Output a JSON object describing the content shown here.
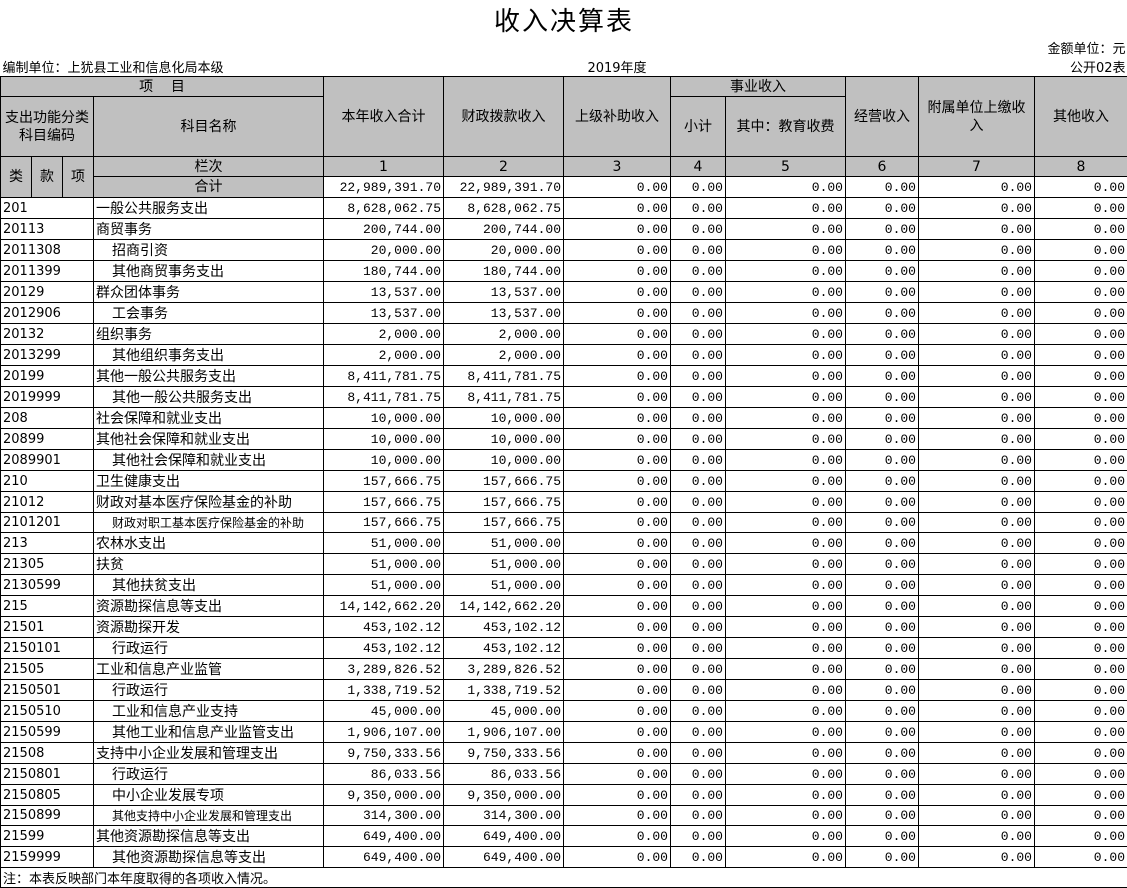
{
  "title": "收入决算表",
  "unit_note": "金额单位：元",
  "org": "编制单位：上犹县工业和信息化局本级",
  "year": "2019年度",
  "form_no": "公开02表",
  "header": {
    "item": "项    目",
    "code_col": "支出功能分类科目编码",
    "name_col": "科目名称",
    "total_income": "本年收入合计",
    "fiscal": "财政拨款收入",
    "superior": "上级补助收入",
    "shiye": "事业收入",
    "subtotal": "小计",
    "edu": "其中：教育收费",
    "business": "经营收入",
    "affiliated": "附属单位上缴收入",
    "other": "其他收入",
    "lanci": "栏次",
    "lei": "类",
    "kuan": "款",
    "xiang": "项",
    "col_numbers": [
      "1",
      "2",
      "3",
      "4",
      "5",
      "6",
      "7",
      "8"
    ]
  },
  "total": {
    "label": "合计",
    "values": [
      "22,989,391.70",
      "22,989,391.70",
      "0.00",
      "0.00",
      "0.00",
      "0.00",
      "0.00",
      "0.00"
    ]
  },
  "rows": [
    [
      "201",
      "一般公共服务支出",
      "8,628,062.75",
      "8,628,062.75",
      "0.00",
      "0.00",
      "0.00",
      "0.00",
      "0.00",
      "0.00"
    ],
    [
      "20113",
      "商贸事务",
      "200,744.00",
      "200,744.00",
      "0.00",
      "0.00",
      "0.00",
      "0.00",
      "0.00",
      "0.00"
    ],
    [
      "2011308",
      "招商引资",
      "20,000.00",
      "20,000.00",
      "0.00",
      "0.00",
      "0.00",
      "0.00",
      "0.00",
      "0.00"
    ],
    [
      "2011399",
      "其他商贸事务支出",
      "180,744.00",
      "180,744.00",
      "0.00",
      "0.00",
      "0.00",
      "0.00",
      "0.00",
      "0.00"
    ],
    [
      "20129",
      "群众团体事务",
      "13,537.00",
      "13,537.00",
      "0.00",
      "0.00",
      "0.00",
      "0.00",
      "0.00",
      "0.00"
    ],
    [
      "2012906",
      "工会事务",
      "13,537.00",
      "13,537.00",
      "0.00",
      "0.00",
      "0.00",
      "0.00",
      "0.00",
      "0.00"
    ],
    [
      "20132",
      "组织事务",
      "2,000.00",
      "2,000.00",
      "0.00",
      "0.00",
      "0.00",
      "0.00",
      "0.00",
      "0.00"
    ],
    [
      "2013299",
      "其他组织事务支出",
      "2,000.00",
      "2,000.00",
      "0.00",
      "0.00",
      "0.00",
      "0.00",
      "0.00",
      "0.00"
    ],
    [
      "20199",
      "其他一般公共服务支出",
      "8,411,781.75",
      "8,411,781.75",
      "0.00",
      "0.00",
      "0.00",
      "0.00",
      "0.00",
      "0.00"
    ],
    [
      "2019999",
      "其他一般公共服务支出",
      "8,411,781.75",
      "8,411,781.75",
      "0.00",
      "0.00",
      "0.00",
      "0.00",
      "0.00",
      "0.00"
    ],
    [
      "208",
      "社会保障和就业支出",
      "10,000.00",
      "10,000.00",
      "0.00",
      "0.00",
      "0.00",
      "0.00",
      "0.00",
      "0.00"
    ],
    [
      "20899",
      "其他社会保障和就业支出",
      "10,000.00",
      "10,000.00",
      "0.00",
      "0.00",
      "0.00",
      "0.00",
      "0.00",
      "0.00"
    ],
    [
      "2089901",
      "其他社会保障和就业支出",
      "10,000.00",
      "10,000.00",
      "0.00",
      "0.00",
      "0.00",
      "0.00",
      "0.00",
      "0.00"
    ],
    [
      "210",
      "卫生健康支出",
      "157,666.75",
      "157,666.75",
      "0.00",
      "0.00",
      "0.00",
      "0.00",
      "0.00",
      "0.00"
    ],
    [
      "21012",
      "财政对基本医疗保险基金的补助",
      "157,666.75",
      "157,666.75",
      "0.00",
      "0.00",
      "0.00",
      "0.00",
      "0.00",
      "0.00"
    ],
    [
      "2101201",
      "财政对职工基本医疗保险基金的补助",
      "157,666.75",
      "157,666.75",
      "0.00",
      "0.00",
      "0.00",
      "0.00",
      "0.00",
      "0.00"
    ],
    [
      "213",
      "农林水支出",
      "51,000.00",
      "51,000.00",
      "0.00",
      "0.00",
      "0.00",
      "0.00",
      "0.00",
      "0.00"
    ],
    [
      "21305",
      "扶贫",
      "51,000.00",
      "51,000.00",
      "0.00",
      "0.00",
      "0.00",
      "0.00",
      "0.00",
      "0.00"
    ],
    [
      "2130599",
      "其他扶贫支出",
      "51,000.00",
      "51,000.00",
      "0.00",
      "0.00",
      "0.00",
      "0.00",
      "0.00",
      "0.00"
    ],
    [
      "215",
      "资源勘探信息等支出",
      "14,142,662.20",
      "14,142,662.20",
      "0.00",
      "0.00",
      "0.00",
      "0.00",
      "0.00",
      "0.00"
    ],
    [
      "21501",
      "资源勘探开发",
      "453,102.12",
      "453,102.12",
      "0.00",
      "0.00",
      "0.00",
      "0.00",
      "0.00",
      "0.00"
    ],
    [
      "2150101",
      "行政运行",
      "453,102.12",
      "453,102.12",
      "0.00",
      "0.00",
      "0.00",
      "0.00",
      "0.00",
      "0.00"
    ],
    [
      "21505",
      "工业和信息产业监管",
      "3,289,826.52",
      "3,289,826.52",
      "0.00",
      "0.00",
      "0.00",
      "0.00",
      "0.00",
      "0.00"
    ],
    [
      "2150501",
      "行政运行",
      "1,338,719.52",
      "1,338,719.52",
      "0.00",
      "0.00",
      "0.00",
      "0.00",
      "0.00",
      "0.00"
    ],
    [
      "2150510",
      "工业和信息产业支持",
      "45,000.00",
      "45,000.00",
      "0.00",
      "0.00",
      "0.00",
      "0.00",
      "0.00",
      "0.00"
    ],
    [
      "2150599",
      "其他工业和信息产业监管支出",
      "1,906,107.00",
      "1,906,107.00",
      "0.00",
      "0.00",
      "0.00",
      "0.00",
      "0.00",
      "0.00"
    ],
    [
      "21508",
      "支持中小企业发展和管理支出",
      "9,750,333.56",
      "9,750,333.56",
      "0.00",
      "0.00",
      "0.00",
      "0.00",
      "0.00",
      "0.00"
    ],
    [
      "2150801",
      "行政运行",
      "86,033.56",
      "86,033.56",
      "0.00",
      "0.00",
      "0.00",
      "0.00",
      "0.00",
      "0.00"
    ],
    [
      "2150805",
      "中小企业发展专项",
      "9,350,000.00",
      "9,350,000.00",
      "0.00",
      "0.00",
      "0.00",
      "0.00",
      "0.00",
      "0.00"
    ],
    [
      "2150899",
      "其他支持中小企业发展和管理支出",
      "314,300.00",
      "314,300.00",
      "0.00",
      "0.00",
      "0.00",
      "0.00",
      "0.00",
      "0.00"
    ],
    [
      "21599",
      "其他资源勘探信息等支出",
      "649,400.00",
      "649,400.00",
      "0.00",
      "0.00",
      "0.00",
      "0.00",
      "0.00",
      "0.00"
    ],
    [
      "2159999",
      "其他资源勘探信息等支出",
      "649,400.00",
      "649,400.00",
      "0.00",
      "0.00",
      "0.00",
      "0.00",
      "0.00",
      "0.00"
    ]
  ],
  "note": "注：本表反映部门本年度取得的各项收入情况。"
}
